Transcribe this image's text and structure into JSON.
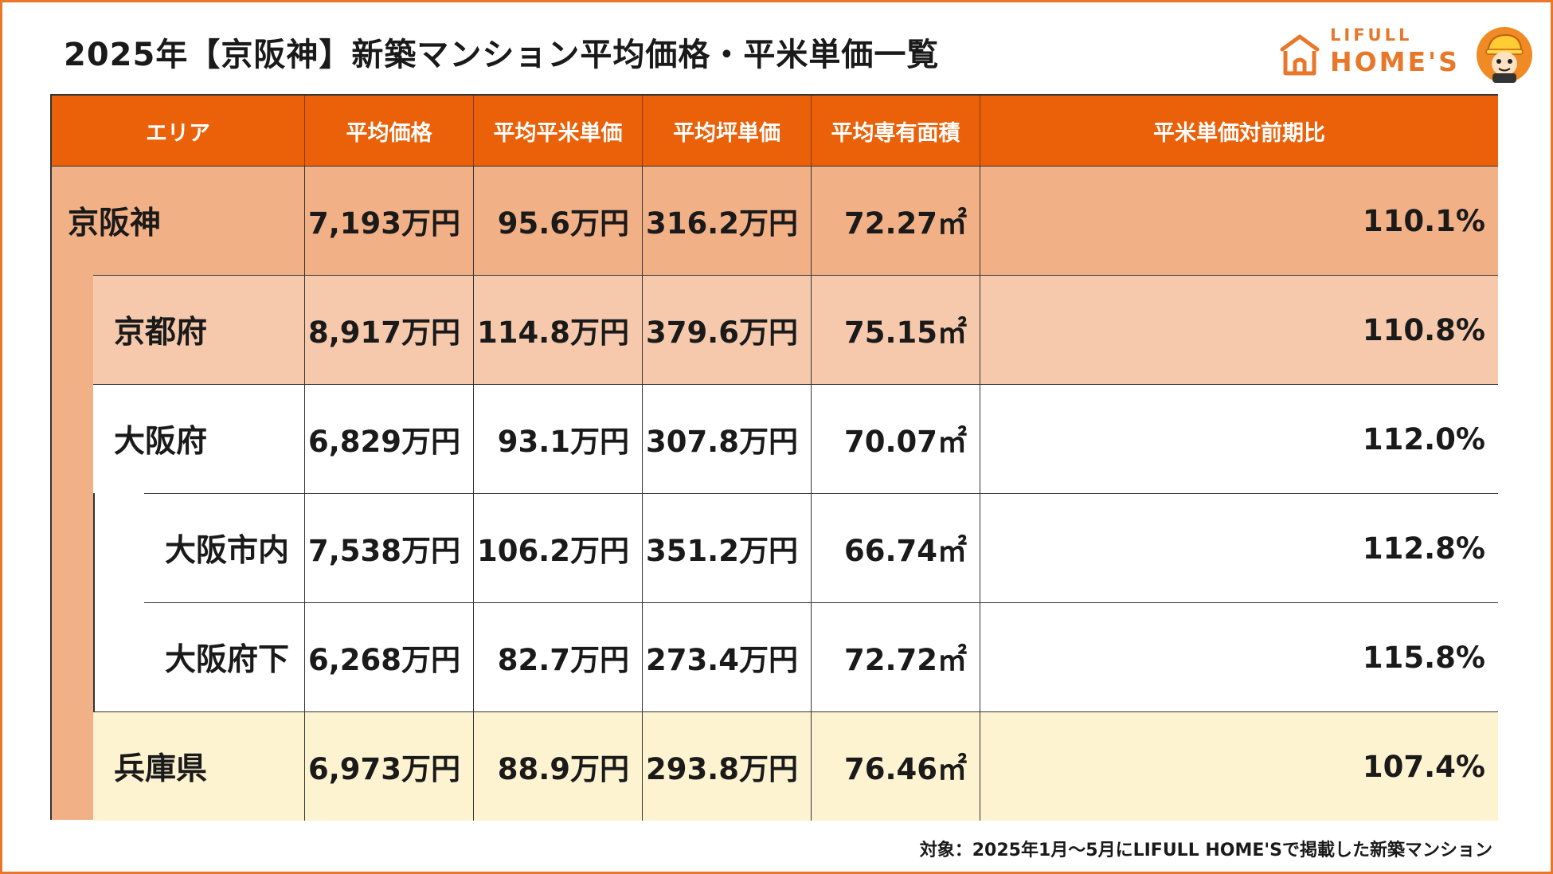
{
  "title": "2025年【京阪神】新築マンション平均価格・平米単価一覧",
  "logo": {
    "small": "LIFULL",
    "big": "HOME'S",
    "icon": "house-icon",
    "mascot": "mascot-icon"
  },
  "colors": {
    "header": "#eb6109",
    "keihanshin": "#f2b086",
    "kyoto": "#f6c9ac",
    "osaka": "#ffffff",
    "hyogo": "#fef3d0",
    "frame": "#e8772a"
  },
  "table": {
    "headers": [
      "エリア",
      "平均価格",
      "平均平米単価",
      "平均坪単価",
      "平均専有面積",
      "平米単価対前期比"
    ],
    "rows": [
      {
        "area": "京阪神",
        "price": "7,193万円",
        "sqm_price": "95.6万円",
        "tsubo_price": "316.2万円",
        "size": "72.27㎡",
        "ratio": "110.1%"
      },
      {
        "area": "京都府",
        "price": "8,917万円",
        "sqm_price": "114.8万円",
        "tsubo_price": "379.6万円",
        "size": "75.15㎡",
        "ratio": "110.8%"
      },
      {
        "area": "大阪府",
        "price": "6,829万円",
        "sqm_price": "93.1万円",
        "tsubo_price": "307.8万円",
        "size": "70.07㎡",
        "ratio": "112.0%"
      },
      {
        "area": "大阪市内",
        "price": "7,538万円",
        "sqm_price": "106.2万円",
        "tsubo_price": "351.2万円",
        "size": "66.74㎡",
        "ratio": "112.8%"
      },
      {
        "area": "大阪府下",
        "price": "6,268万円",
        "sqm_price": "82.7万円",
        "tsubo_price": "273.4万円",
        "size": "72.72㎡",
        "ratio": "115.8%"
      },
      {
        "area": "兵庫県",
        "price": "6,973万円",
        "sqm_price": "88.9万円",
        "tsubo_price": "293.8万円",
        "size": "76.46㎡",
        "ratio": "107.4%"
      }
    ]
  },
  "footer": "対象：2025年1月〜5月にLIFULL HOME'Sで掲載した新築マンション"
}
